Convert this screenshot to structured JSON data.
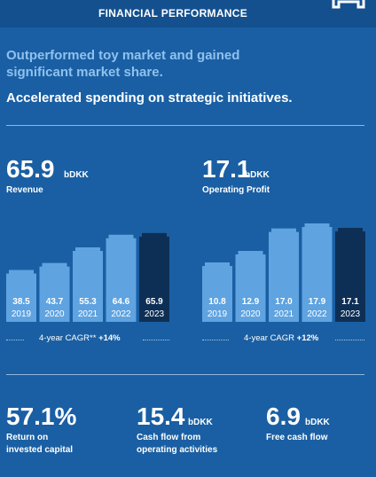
{
  "header": {
    "title": "FINANCIAL PERFORMANCE",
    "icon": "bookmark-icon"
  },
  "subtitle_1": "Outperformed toy market and gained significant market share.",
  "subtitle_2": "Accelerated spending on strategic initiatives.",
  "revenue": {
    "value": "65.9",
    "unit": "bDKK",
    "label": "Revenue"
  },
  "operating_profit": {
    "value": "17.1",
    "unit": "bDKK",
    "label": "Operating Profit"
  },
  "colors": {
    "bar_past": "#5fa3e0",
    "bar_current": "#0e2f55",
    "background": "#1a5fa3"
  },
  "chart_data": [
    {
      "type": "bar",
      "categories": [
        "2019",
        "2020",
        "2021",
        "2022",
        "2023"
      ],
      "values": [
        38.5,
        43.7,
        55.3,
        64.6,
        65.9
      ],
      "value_labels": [
        "38.5",
        "43.7",
        "55.3",
        "64.6",
        "65.9"
      ],
      "title": "Revenue",
      "footnote_prefix": "4-year CAGR** ",
      "footnote_value": "+14%"
    },
    {
      "type": "bar",
      "categories": [
        "2019",
        "2020",
        "2021",
        "2022",
        "2023"
      ],
      "values": [
        10.8,
        12.9,
        17.0,
        17.9,
        17.1
      ],
      "value_labels": [
        "10.8",
        "12.9",
        "17.0",
        "17.9",
        "17.1"
      ],
      "title": "Operating Profit",
      "footnote_prefix": "4-year CAGR ",
      "footnote_value": "+12%"
    }
  ],
  "kpis": [
    {
      "value": "57.1%",
      "unit": "",
      "label_line1": "Return on",
      "label_line2": "invested capital"
    },
    {
      "value": "15.4",
      "unit": "bDKK",
      "label_line1": "Cash flow from",
      "label_line2": "operating activities"
    },
    {
      "value": "6.9",
      "unit": "bDKK",
      "label_line1": "Free cash flow",
      "label_line2": ""
    }
  ]
}
